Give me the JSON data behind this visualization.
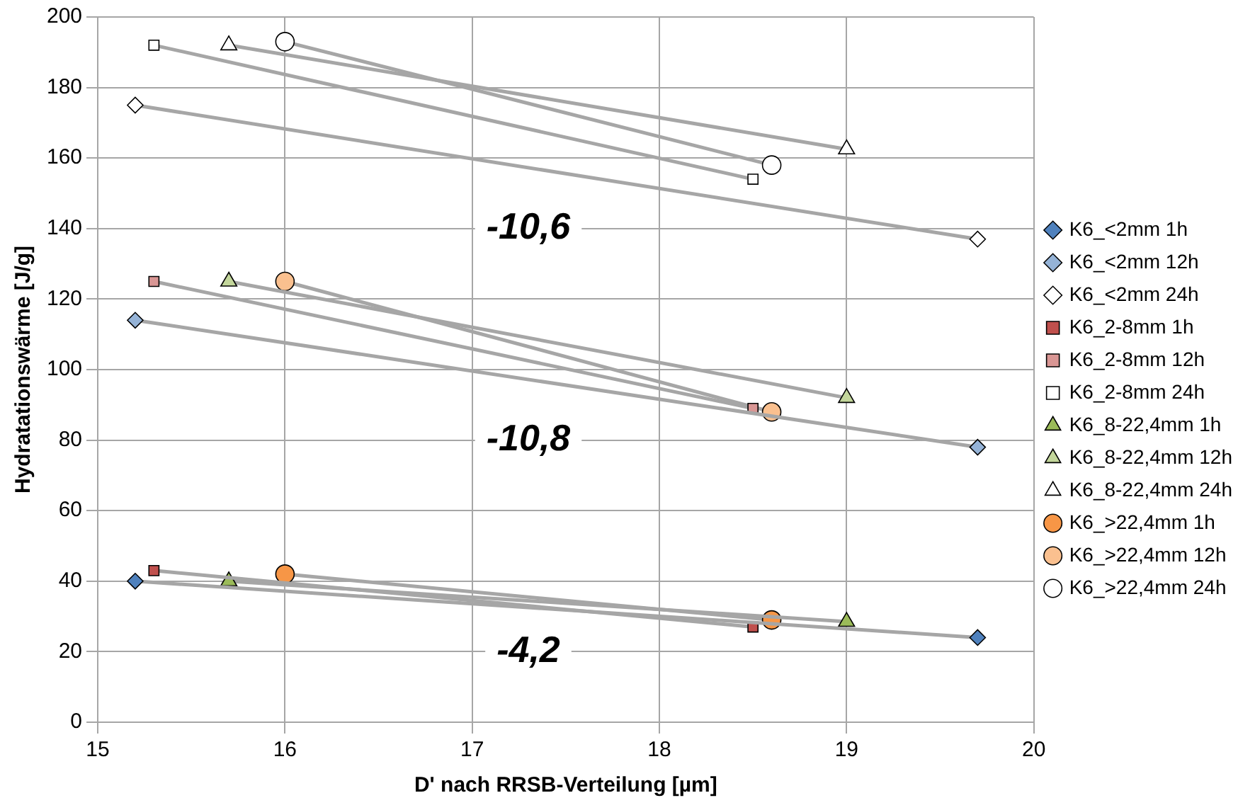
{
  "chart_data": {
    "type": "line",
    "xlabel": "D' nach RRSB-Verteilung [µm]",
    "ylabel": "Hydratationswärme [J/g]",
    "xlim": [
      15,
      20
    ],
    "xticks": [
      15,
      16,
      17,
      18,
      19,
      20
    ],
    "ylim": [
      0,
      200
    ],
    "yticks": [
      0,
      20,
      40,
      60,
      80,
      100,
      120,
      140,
      160,
      180,
      200
    ],
    "grid": true,
    "legend": "right",
    "series": [
      {
        "name": "K6_<2mm 1h",
        "color": "#4f81bd",
        "marker": "diamond",
        "x": [
          15.2,
          19.7
        ],
        "values": [
          40,
          24
        ]
      },
      {
        "name": "K6_<2mm 12h",
        "color": "#95b3d7",
        "marker": "diamond",
        "x": [
          15.2,
          19.7
        ],
        "values": [
          114,
          78
        ]
      },
      {
        "name": "K6_<2mm 24h",
        "color": "#ffffff",
        "marker": "diamond",
        "x": [
          15.2,
          19.7
        ],
        "values": [
          175,
          137
        ]
      },
      {
        "name": "K6_2-8mm 1h",
        "color": "#c0504d",
        "marker": "square",
        "x": [
          15.3,
          18.5
        ],
        "values": [
          43,
          27
        ]
      },
      {
        "name": "K6_2-8mm 12h",
        "color": "#d99694",
        "marker": "square",
        "x": [
          15.3,
          18.5
        ],
        "values": [
          125,
          89
        ]
      },
      {
        "name": "K6_2-8mm 24h",
        "color": "#ffffff",
        "marker": "square",
        "x": [
          15.3,
          18.5
        ],
        "values": [
          192,
          154
        ]
      },
      {
        "name": "K6_8-22,4mm 1h",
        "color": "#9bbb59",
        "marker": "triangle",
        "x": [
          15.7,
          19
        ],
        "values": [
          40,
          28.5
        ]
      },
      {
        "name": "K6_8-22,4mm 12h",
        "color": "#c3d69b",
        "marker": "triangle",
        "x": [
          15.7,
          19
        ],
        "values": [
          125,
          92
        ]
      },
      {
        "name": "K6_8-22,4mm 24h",
        "color": "#ffffff",
        "marker": "triangle",
        "x": [
          15.7,
          19
        ],
        "values": [
          192,
          162.5
        ]
      },
      {
        "name": "K6_>22,4mm 1h",
        "color": "#f79646",
        "marker": "circle",
        "x": [
          16,
          18.6
        ],
        "values": [
          42,
          29
        ]
      },
      {
        "name": "K6_>22,4mm 12h",
        "color": "#fac08f",
        "marker": "circle",
        "x": [
          16,
          18.6
        ],
        "values": [
          125,
          88
        ]
      },
      {
        "name": "K6_>22,4mm 24h",
        "color": "#ffffff",
        "marker": "circle",
        "x": [
          16,
          18.6
        ],
        "values": [
          193,
          158
        ]
      }
    ],
    "annotations": [
      "-10,6",
      "-10,8",
      "-4,2"
    ]
  }
}
